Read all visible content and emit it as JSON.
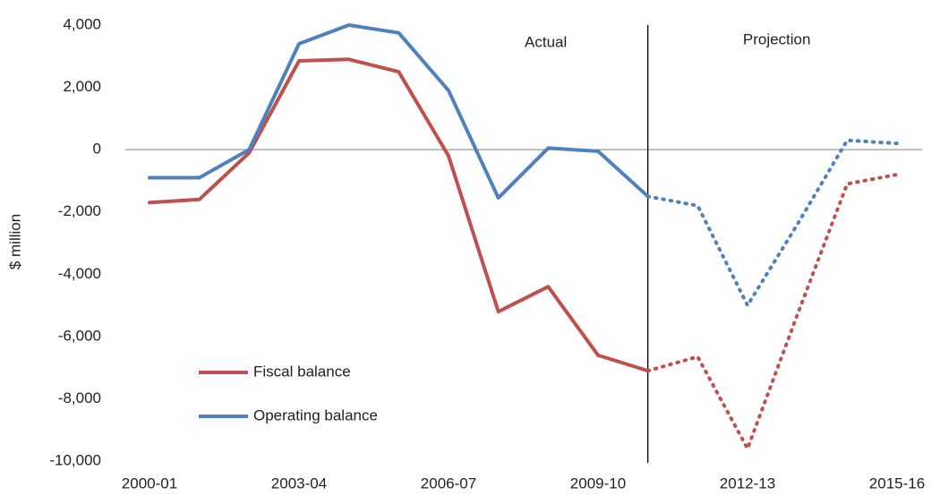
{
  "chart_data": {
    "type": "line",
    "y_label": "$ million",
    "categories": [
      "2000-01",
      null,
      null,
      "2003-04",
      null,
      null,
      "2006-07",
      null,
      null,
      "2009-10",
      null,
      null,
      "2012-13",
      null,
      null,
      "2015-16"
    ],
    "series": [
      {
        "name": "Fiscal balance",
        "color": "#c0504d",
        "values": [
          -1700,
          -1600,
          -100,
          2850,
          2900,
          2500,
          -200,
          -5200,
          -4400,
          -6600,
          -7100,
          -6650,
          -9600,
          -5300,
          -1100,
          -800
        ]
      },
      {
        "name": "Operating balance",
        "color": "#4f81bd",
        "values": [
          -900,
          -900,
          0,
          3400,
          4000,
          3750,
          1900,
          -1550,
          50,
          -50,
          -1500,
          -1800,
          -5000,
          -2400,
          300,
          200
        ]
      }
    ],
    "ylim": [
      -10000,
      4000
    ],
    "yticks": [
      {
        "value": -10000,
        "label": "-10,000"
      },
      {
        "value": -8000,
        "label": "-8,000"
      },
      {
        "value": -6000,
        "label": "-6,000"
      },
      {
        "value": -4000,
        "label": "-4,000"
      },
      {
        "value": -2000,
        "label": "-2,000"
      },
      0,
      {
        "value": 2000,
        "label": "2,000"
      },
      {
        "value": 4000,
        "label": "4,000"
      }
    ],
    "divider_index": 10,
    "annotations": [
      "Actual",
      "Projection"
    ],
    "legend": "lower left"
  }
}
